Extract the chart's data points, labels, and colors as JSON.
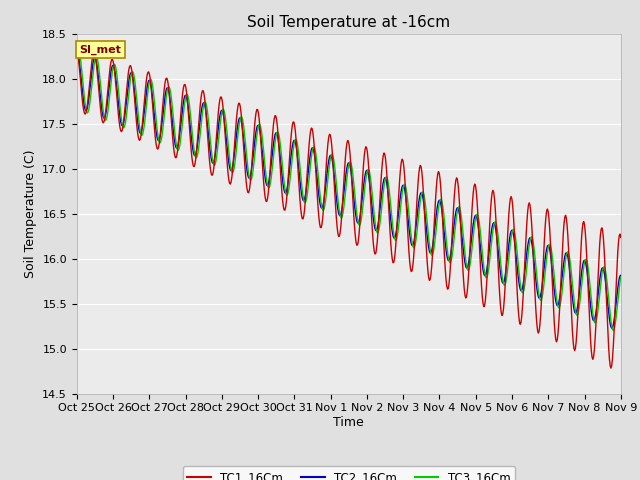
{
  "title": "Soil Temperature at -16cm",
  "ylabel": "Soil Temperature (C)",
  "xlabel": "Time",
  "ylim": [
    14.5,
    18.5
  ],
  "yticks": [
    14.5,
    15.0,
    15.5,
    16.0,
    16.5,
    17.0,
    17.5,
    18.0,
    18.5
  ],
  "xtick_labels": [
    "Oct 25",
    "Oct 26",
    "Oct 27",
    "Oct 28",
    "Oct 29",
    "Oct 30",
    "Oct 31",
    "Nov 1",
    "Nov 2",
    "Nov 3",
    "Nov 4",
    "Nov 5",
    "Nov 6",
    "Nov 7",
    "Nov 8",
    "Nov 9"
  ],
  "colors": {
    "TC1": "#cc0000",
    "TC2": "#0000cc",
    "TC3": "#00cc00"
  },
  "legend_labels": [
    "TC1_16Cm",
    "TC2_16Cm",
    "TC3_16Cm"
  ],
  "annotation_text": "SI_met",
  "annotation_bg": "#ffff99",
  "annotation_border": "#aa8800",
  "title_fontsize": 11,
  "axis_fontsize": 9,
  "tick_fontsize": 8,
  "fig_bg": "#e0e0e0",
  "plot_bg": "#ebebeb"
}
